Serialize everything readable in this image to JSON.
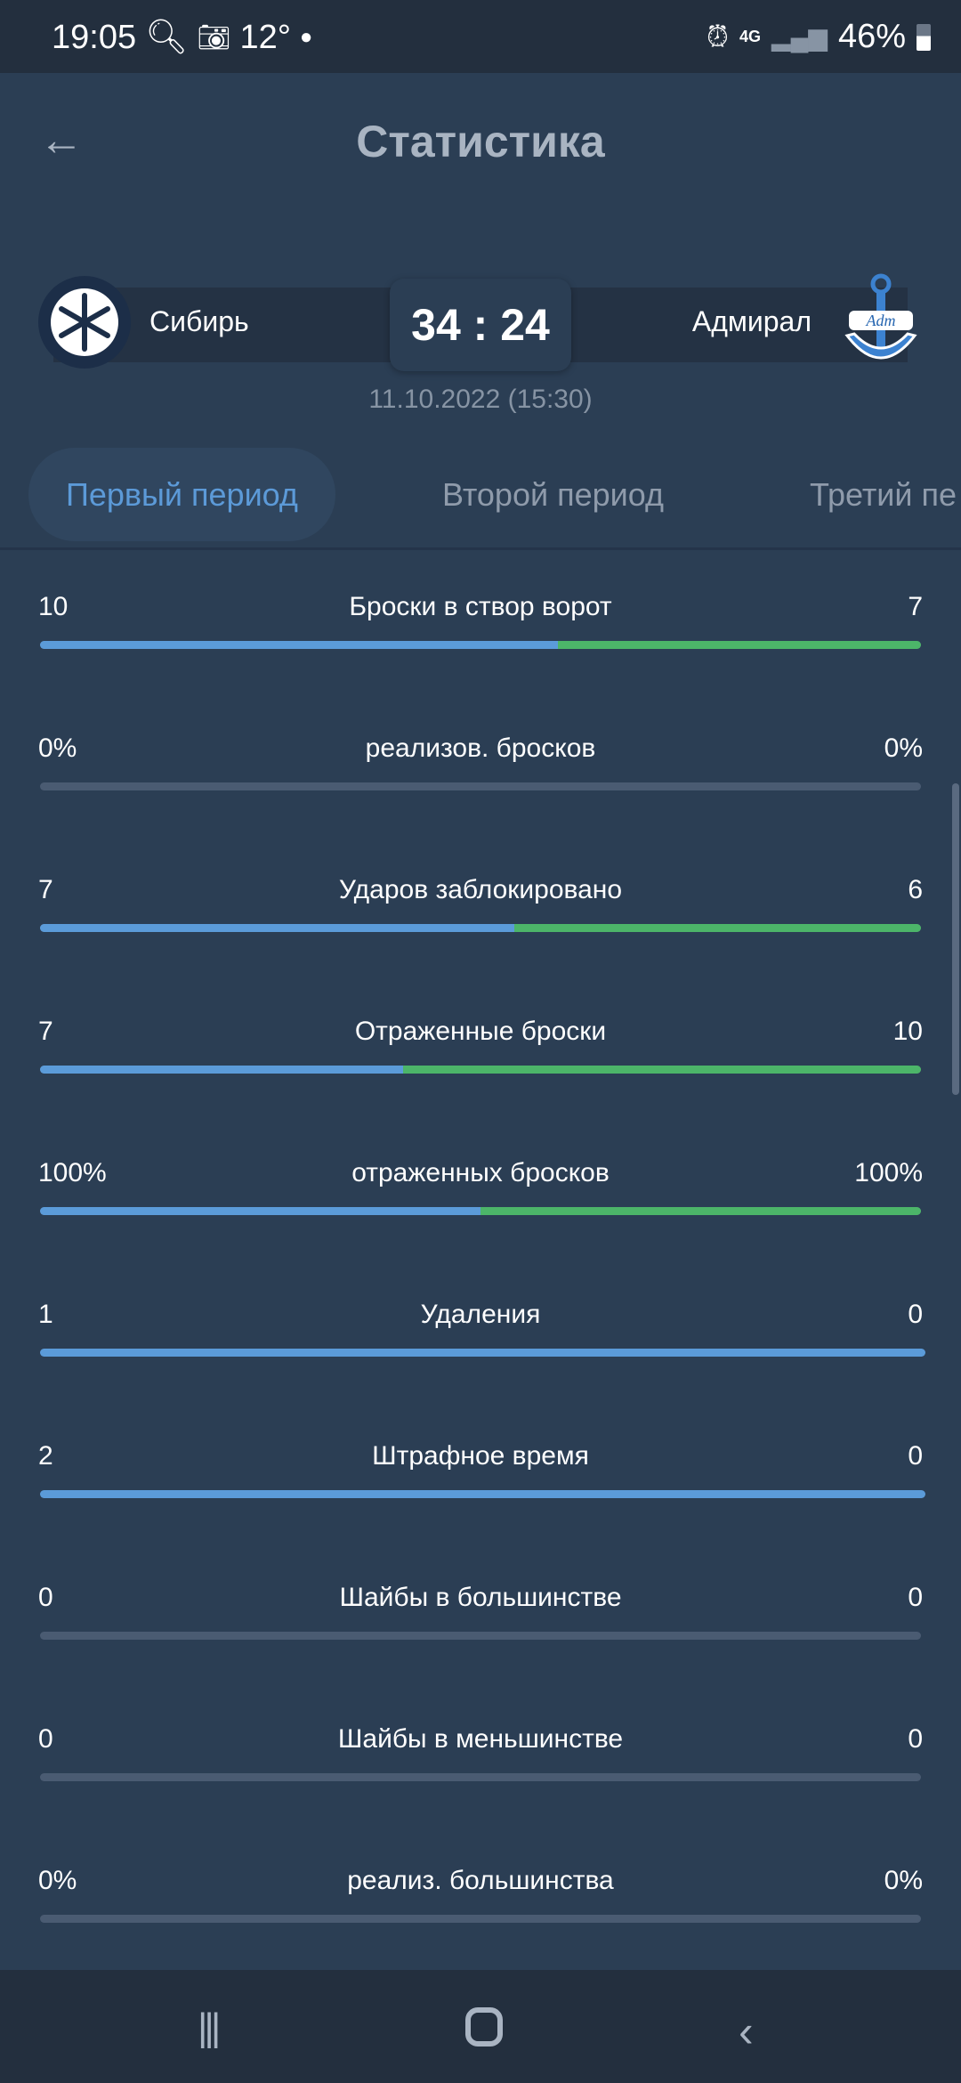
{
  "status_bar": {
    "time": "19:05",
    "temperature": "12°",
    "battery": "46%",
    "network": "4G"
  },
  "header": {
    "title": "Статистика",
    "back_icon": "arrow-left-icon"
  },
  "match": {
    "home": {
      "name": "Сибирь"
    },
    "away": {
      "name": "Адмирал"
    },
    "score": "34 : 24",
    "date": "11.10.2022 (15:30)"
  },
  "tabs": [
    {
      "label": "Первый период",
      "active": true
    },
    {
      "label": "Второй период"
    },
    {
      "label": "Третий пе"
    }
  ],
  "colors": {
    "home": "#5b9bd9",
    "away": "#4cb569",
    "empty": "#4a5b72",
    "background": "#2b3e54"
  },
  "stats": [
    {
      "label": "Броски в створ ворот",
      "home": "10",
      "away": "7",
      "home_share": 0.588
    },
    {
      "label": "реализов. бросков",
      "home": "0%",
      "away": "0%",
      "home_share": null
    },
    {
      "label": "Ударов заблокировано",
      "home": "7",
      "away": "6",
      "home_share": 0.538
    },
    {
      "label": "Отраженные броски",
      "home": "7",
      "away": "10",
      "home_share": 0.412
    },
    {
      "label": "отраженных бросков",
      "home": "100%",
      "away": "100%",
      "home_share": 0.5
    },
    {
      "label": "Удаления",
      "home": "1",
      "away": "0",
      "home_share": 1
    },
    {
      "label": "Штрафное время",
      "home": "2",
      "away": "0",
      "home_share": 1
    },
    {
      "label": "Шайбы в большинстве",
      "home": "0",
      "away": "0",
      "home_share": null
    },
    {
      "label": "Шайбы в меньшинстве",
      "home": "0",
      "away": "0",
      "home_share": null
    },
    {
      "label": "реализ. большинства",
      "home": "0%",
      "away": "0%",
      "home_share": null
    }
  ]
}
